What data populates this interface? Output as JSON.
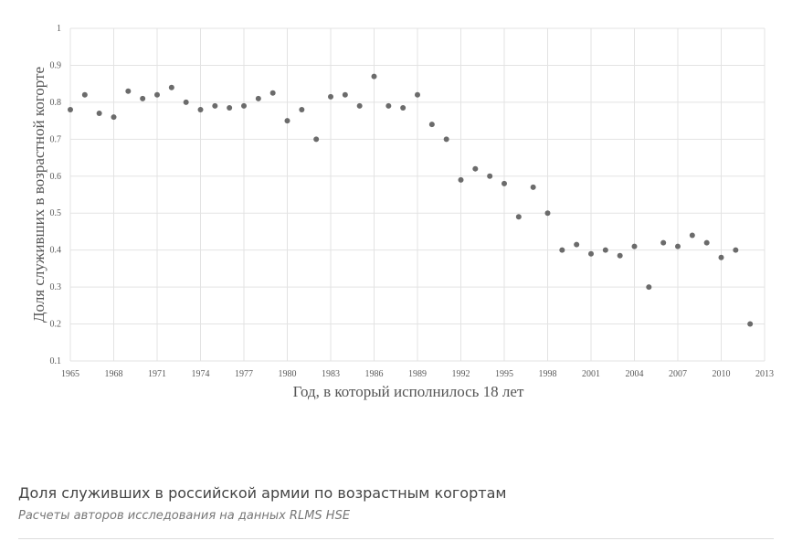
{
  "chart_data": {
    "type": "scatter",
    "x_label": "Год, в который исполнилось 18 лет",
    "y_label": "Доля служивших в возрастной когорте",
    "x": [
      1965,
      1966,
      1967,
      1968,
      1969,
      1970,
      1971,
      1972,
      1973,
      1974,
      1975,
      1976,
      1977,
      1978,
      1979,
      1980,
      1981,
      1982,
      1983,
      1984,
      1985,
      1986,
      1987,
      1988,
      1989,
      1990,
      1991,
      1992,
      1993,
      1994,
      1995,
      1996,
      1997,
      1998,
      1999,
      2000,
      2001,
      2002,
      2003,
      2004,
      2005,
      2006,
      2007,
      2008,
      2009,
      2010,
      2011,
      2012
    ],
    "values": [
      0.78,
      0.82,
      0.77,
      0.76,
      0.83,
      0.81,
      0.82,
      0.84,
      0.8,
      0.78,
      0.79,
      0.785,
      0.79,
      0.81,
      0.825,
      0.75,
      0.78,
      0.7,
      0.815,
      0.82,
      0.79,
      0.87,
      0.79,
      0.785,
      0.82,
      0.74,
      0.7,
      0.59,
      0.62,
      0.6,
      0.58,
      0.49,
      0.57,
      0.5,
      0.4,
      0.415,
      0.39,
      0.4,
      0.385,
      0.41,
      0.3,
      0.42,
      0.41,
      0.44,
      0.42,
      0.38,
      0.4,
      0.2
    ],
    "color": "#6b6b6b",
    "xlim": [
      1965,
      2013
    ],
    "xticks": [
      1965,
      1968,
      1971,
      1974,
      1977,
      1980,
      1983,
      1986,
      1989,
      1992,
      1995,
      1998,
      2001,
      2004,
      2007,
      2010,
      2013
    ],
    "ylim": [
      0.1,
      1
    ],
    "yticks": [
      0.1,
      0.2,
      0.3,
      0.4,
      0.5,
      0.6,
      0.7,
      0.8,
      0.9,
      1
    ],
    "grid": true
  },
  "caption": {
    "title": "Доля служивших в российской армии по возрастным когортам",
    "source": "Расчеты авторов исследования на данных RLMS HSE"
  }
}
